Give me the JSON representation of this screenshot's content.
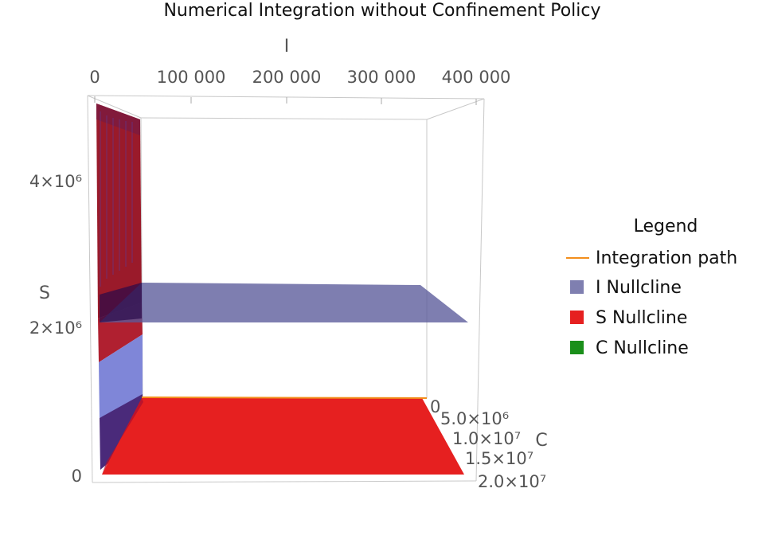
{
  "chart_data": {
    "type": "surface3d",
    "title": "Numerical Integration without Confinement Policy",
    "axes": {
      "I": {
        "label": "I",
        "ticks": [
          "0",
          "100 000",
          "200 000",
          "300 000",
          "400 000"
        ],
        "range": [
          0,
          400000
        ]
      },
      "S": {
        "label": "S",
        "ticks": [
          "0",
          "2×10⁶",
          "4×10⁶"
        ],
        "range": [
          0,
          5000000
        ]
      },
      "C": {
        "label": "C",
        "ticks": [
          "0",
          "5.0×10⁶",
          "1.0×10⁷",
          "1.5×10⁷",
          "2.0×10⁷"
        ],
        "range": [
          0,
          20000000
        ]
      }
    },
    "legend": {
      "title": "Legend",
      "placement": "right",
      "entries": [
        {
          "name": "Integration path",
          "color": "#f28e1c",
          "kind": "line"
        },
        {
          "name": "I Nullcline",
          "color": "#7f7fb0",
          "kind": "surface"
        },
        {
          "name": "S Nullcline",
          "color": "#e62020",
          "kind": "surface"
        },
        {
          "name": "C Nullcline",
          "color": "#1a8f1a",
          "kind": "surface"
        }
      ]
    },
    "grid": false
  }
}
